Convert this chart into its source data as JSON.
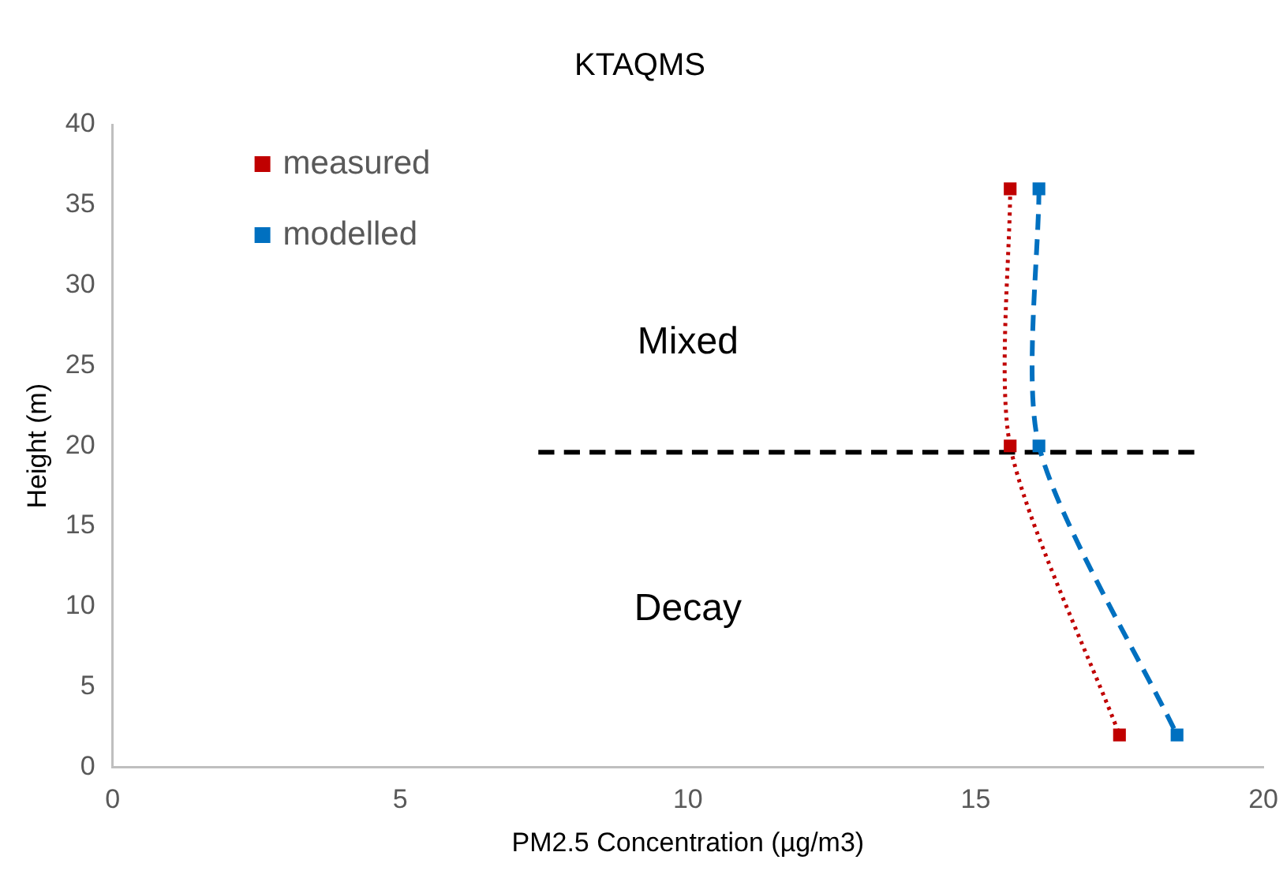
{
  "chart_data": {
    "type": "scatter",
    "title": "KTAQMS",
    "xlabel": "PM2.5 Concentration (µg/m3)",
    "ylabel": "Height (m)",
    "series": [
      {
        "name": "measured",
        "type": "line",
        "color": "#c00000",
        "line_style": "dotted",
        "marker": "square",
        "x": [
          15.6,
          15.6,
          17.5
        ],
        "values": [
          36,
          20,
          2
        ]
      },
      {
        "name": "modelled",
        "type": "line",
        "color": "#0070c0",
        "line_style": "dashed",
        "marker": "square",
        "x": [
          16.1,
          16.1,
          18.5
        ],
        "values": [
          36,
          20,
          2
        ]
      },
      {
        "type": "line",
        "color": "#000000",
        "line_style": "dashed",
        "marker": "none",
        "x": [
          7.4,
          18.8
        ],
        "values": [
          19.6,
          19.6
        ]
      }
    ],
    "annotations": [
      "Mixed",
      "Decay"
    ],
    "xlim": [
      0,
      20
    ],
    "xticks": [
      0,
      5,
      10,
      15,
      20
    ],
    "ylim": [
      0,
      40
    ],
    "yticks": [
      0,
      5,
      10,
      15,
      20,
      25,
      30,
      35,
      40
    ],
    "grid": false,
    "legend": "top left"
  }
}
